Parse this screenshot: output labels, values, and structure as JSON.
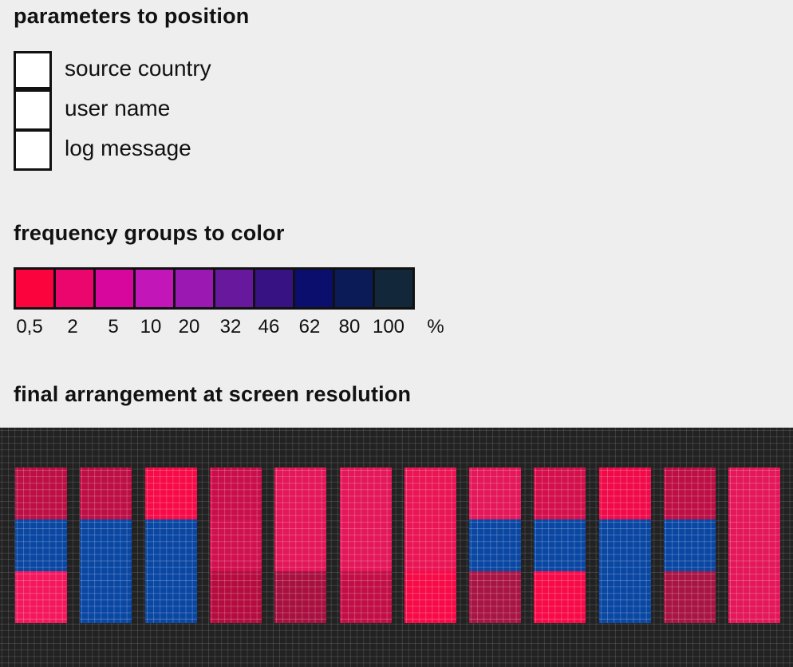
{
  "sections": {
    "positioning_title": "parameters to position",
    "coloring_title": "frequency groups to color",
    "arrangement_title": "final arrangement at screen resolution"
  },
  "parameters": [
    {
      "label": "source country"
    },
    {
      "label": "user name"
    },
    {
      "label": "log message"
    }
  ],
  "color_scale": {
    "groups": [
      {
        "label": "0,5",
        "color": "#fb043e"
      },
      {
        "label": "2",
        "color": "#ea066c"
      },
      {
        "label": "5",
        "color": "#d7069c"
      },
      {
        "label": "10",
        "color": "#c216b8"
      },
      {
        "label": "20",
        "color": "#9b18b2"
      },
      {
        "label": "32",
        "color": "#67189c"
      },
      {
        "label": "46",
        "color": "#371283"
      },
      {
        "label": "62",
        "color": "#0b0e6c"
      },
      {
        "label": "80",
        "color": "#0a1b57"
      },
      {
        "label": "100",
        "color": "#12283a"
      }
    ],
    "unit": "%"
  },
  "arrangement": {
    "background": "#222222",
    "columns": [
      [
        "#bd0f45",
        "#0a47a3",
        "#f3175e"
      ],
      [
        "#bd0f45",
        "#0a47a3",
        "#0a47a3"
      ],
      [
        "#f70a48",
        "#0a47a3",
        "#0a47a3"
      ],
      [
        "#c90e4b",
        "#d0104f",
        "#b50c3f"
      ],
      [
        "#e3175a",
        "#e3175a",
        "#a81040"
      ],
      [
        "#e3175a",
        "#e3175a",
        "#c20e46"
      ],
      [
        "#ea1555",
        "#ea1555",
        "#f70a48"
      ],
      [
        "#e3175a",
        "#0a47a3",
        "#a81545"
      ],
      [
        "#d30f4c",
        "#0a47a3",
        "#f70a48"
      ],
      [
        "#f00a4a",
        "#0a47a3",
        "#0a47a3"
      ],
      [
        "#bd0f45",
        "#0a47a3",
        "#a81545"
      ],
      [
        "#e3175a",
        "#e3175a",
        "#e3175a"
      ]
    ]
  }
}
